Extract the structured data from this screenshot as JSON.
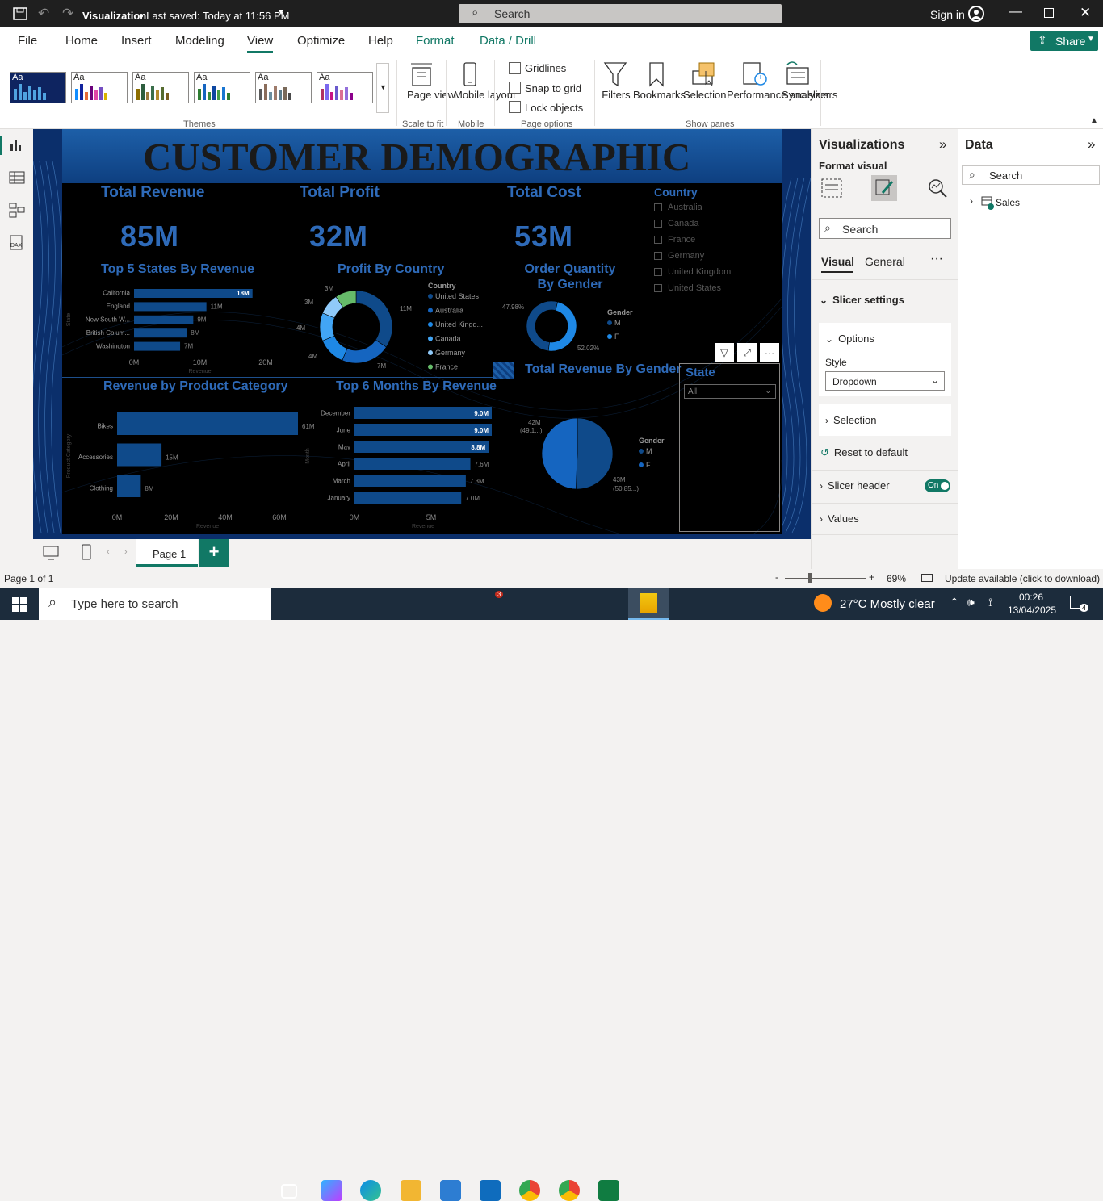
{
  "titlebar": {
    "doc_title": "Visualization",
    "saved": "• Last saved: Today at 11:56 PM",
    "search_placeholder": "Search",
    "sign_in": "Sign in"
  },
  "menu": {
    "items": [
      "File",
      "Home",
      "Insert",
      "Modeling",
      "View",
      "Optimize",
      "Help",
      "Format",
      "Data / Drill"
    ],
    "active": "View",
    "share": "Share"
  },
  "ribbon": {
    "themes_label": "Themes",
    "page_view": "Page view",
    "scale_to_fit": "Scale to fit",
    "mobile_layout": "Mobile layout",
    "mobile": "Mobile",
    "gridlines": "Gridlines",
    "snap_to_grid": "Snap to grid",
    "lock_objects": "Lock objects",
    "page_options": "Page options",
    "filters": "Filters",
    "bookmarks": "Bookmarks",
    "selection": "Selection",
    "performance": "Performance analyzer",
    "sync_slicers": "Sync slicers",
    "show_panes": "Show panes"
  },
  "report": {
    "title": "CUSTOMER DEMOGRAPHIC",
    "kpis": [
      {
        "title": "Total Revenue",
        "value": "85M"
      },
      {
        "title": "Total Profit",
        "value": "32M"
      },
      {
        "title": "Total Cost",
        "value": "53M"
      }
    ],
    "country_slicer": {
      "title": "Country",
      "items": [
        "Australia",
        "Canada",
        "France",
        "Germany",
        "United Kingdom",
        "United States"
      ]
    },
    "state_slicer": {
      "title": "State",
      "value": "All"
    }
  },
  "chart_data": [
    {
      "type": "bar",
      "title": "Top 5 States By Revenue",
      "categories": [
        "California",
        "England",
        "New South W...",
        "British Colum...",
        "Washington"
      ],
      "values": [
        18,
        11,
        9,
        8,
        7
      ],
      "labels": [
        "18M",
        "11M",
        "9M",
        "8M",
        "7M"
      ],
      "xticks": [
        "0M",
        "10M",
        "20M"
      ],
      "xlabel": "Revenue",
      "ylabel": "State"
    },
    {
      "type": "pie",
      "title": "Profit By Country",
      "legend_title": "Country",
      "categories": [
        "United States",
        "Australia",
        "United Kingd...",
        "Canada",
        "Germany",
        "France"
      ],
      "values": [
        11,
        7,
        4,
        4,
        3,
        3
      ],
      "labels": [
        "11M",
        "7M",
        "4M",
        "4M",
        "3M",
        "3M"
      ],
      "colors": [
        "#0f4a8a",
        "#1565c0",
        "#1e88e5",
        "#42a5f5",
        "#90caf9",
        "#66bb6a"
      ]
    },
    {
      "type": "pie",
      "title": "Order Quantity By Gender",
      "legend_title": "Gender",
      "categories": [
        "M",
        "F"
      ],
      "values": [
        52.02,
        47.98
      ],
      "labels": [
        "52.02%",
        "47.98%"
      ],
      "colors": [
        "#0f4a8a",
        "#1e88e5"
      ]
    },
    {
      "type": "bar",
      "title": "Revenue by Product Category",
      "categories": [
        "Bikes",
        "Accessories",
        "Clothing"
      ],
      "values": [
        61,
        15,
        8
      ],
      "labels": [
        "61M",
        "15M",
        "8M"
      ],
      "xticks": [
        "0M",
        "20M",
        "40M",
        "60M"
      ],
      "xlabel": "Revenue",
      "ylabel": "Product Category"
    },
    {
      "type": "bar",
      "title": "Top 6 Months By Revenue",
      "categories": [
        "December",
        "June",
        "May",
        "April",
        "March",
        "January"
      ],
      "values": [
        9.0,
        9.0,
        8.8,
        7.6,
        7.3,
        7.0
      ],
      "labels": [
        "9.0M",
        "9.0M",
        "8.8M",
        "7.6M",
        "7.3M",
        "7.0M"
      ],
      "xticks": [
        "0M",
        "5M"
      ],
      "xlabel": "Revenue",
      "ylabel": "Month"
    },
    {
      "type": "pie",
      "title": "Total Revenue By Gender",
      "legend_title": "Gender",
      "categories": [
        "M",
        "F"
      ],
      "values": [
        43,
        42
      ],
      "labels": [
        "43M (50.85...)",
        "42M (49.1...)"
      ],
      "colors": [
        "#0f4a8a",
        "#1565c0"
      ]
    }
  ],
  "pages": {
    "tab": "Page 1",
    "status": "Page 1 of 1",
    "zoom": "69%",
    "update": "Update available (click to download)"
  },
  "viz_pane": {
    "title": "Visualizations",
    "format_visual": "Format visual",
    "search": "Search",
    "tab_visual": "Visual",
    "tab_general": "General",
    "slicer_settings": "Slicer settings",
    "options": "Options",
    "style_label": "Style",
    "style_value": "Dropdown",
    "selection": "Selection",
    "reset": "Reset to default",
    "slicer_header": "Slicer header",
    "toggle": "On",
    "values": "Values"
  },
  "data_pane": {
    "title": "Data",
    "search": "Search",
    "table": "Sales"
  },
  "taskbar": {
    "search": "Type here to search",
    "weather": "27°C  Mostly clear",
    "time": "00:26",
    "date": "13/04/2025",
    "notif": "4",
    "outlook_badge": "3"
  }
}
